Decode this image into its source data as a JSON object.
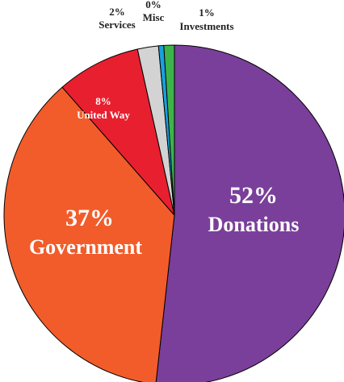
{
  "chart_data": {
    "type": "pie",
    "title": "",
    "slices": [
      {
        "label": "Donations",
        "percent_label": "52%",
        "value": 52,
        "color": "#7a3f9a",
        "text_color": "#ffffff"
      },
      {
        "label": "Government",
        "percent_label": "37%",
        "value": 37,
        "color": "#f25c2a",
        "text_color": "#ffffff"
      },
      {
        "label": "United Way",
        "percent_label": "8%",
        "value": 8,
        "color": "#e81f2f",
        "text_color": "#ffffff"
      },
      {
        "label": "Services",
        "percent_label": "2%",
        "value": 2,
        "color": "#d3d3d3",
        "text_color": "#222222"
      },
      {
        "label": "Misc",
        "percent_label": "0%",
        "value": 0.5,
        "color": "#1aa0dc",
        "text_color": "#222222"
      },
      {
        "label": "Investments",
        "percent_label": "1%",
        "value": 1,
        "color": "#3cb44a",
        "text_color": "#222222"
      }
    ]
  }
}
